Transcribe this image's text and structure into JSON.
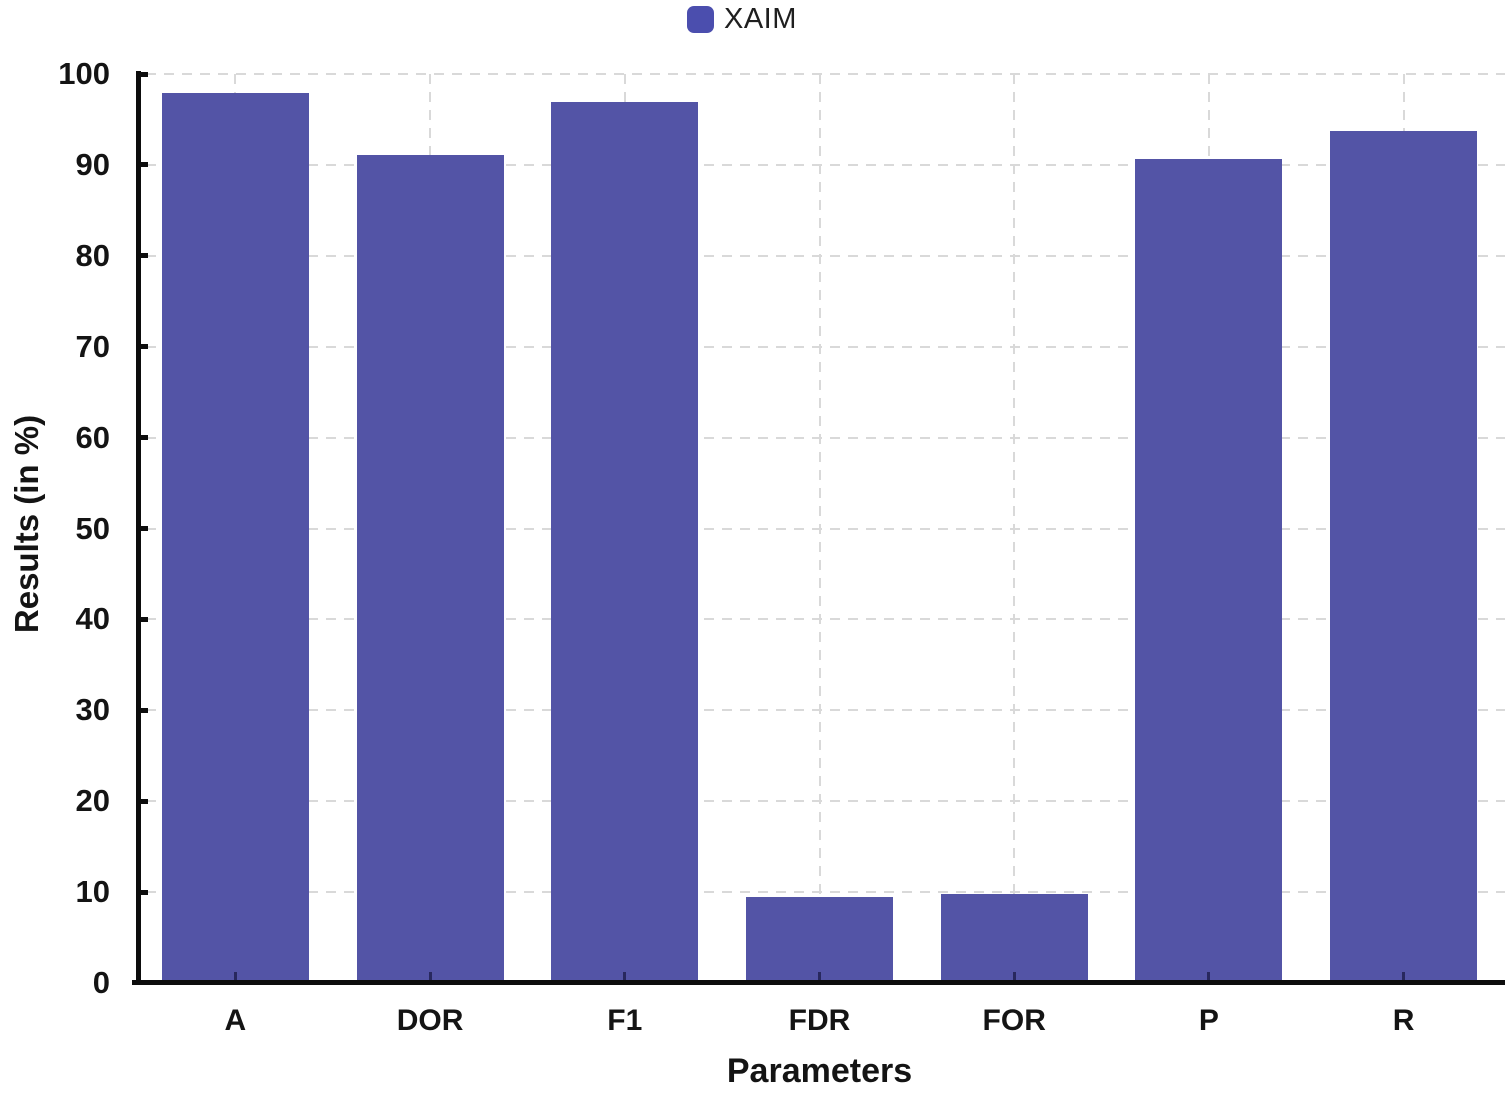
{
  "legend": {
    "series_label": "XAIM"
  },
  "chart_data": {
    "type": "bar",
    "title": "",
    "series_name": "XAIM",
    "categories": [
      "A",
      "DOR",
      "F1",
      "FDR",
      "FOR",
      "P",
      "R"
    ],
    "values": [
      97.9,
      91.1,
      96.9,
      9.5,
      9.8,
      90.7,
      93.7
    ],
    "xlabel": "Parameters",
    "ylabel": "Results (in %)",
    "ylim": [
      0,
      100
    ],
    "ytick_step": 10,
    "yticks": [
      0,
      10,
      20,
      30,
      40,
      50,
      60,
      70,
      80,
      90,
      100
    ],
    "grid": "dashed horizontal lines every 10 units; dashed vertical lines at category centers",
    "legend_position": "top-center",
    "colors": {
      "bar": "#5354A6",
      "legend_swatch": "#4B4EAE",
      "gridline": "#D9D9D9",
      "axis": "#0D0D0D",
      "text": "#141414"
    }
  }
}
